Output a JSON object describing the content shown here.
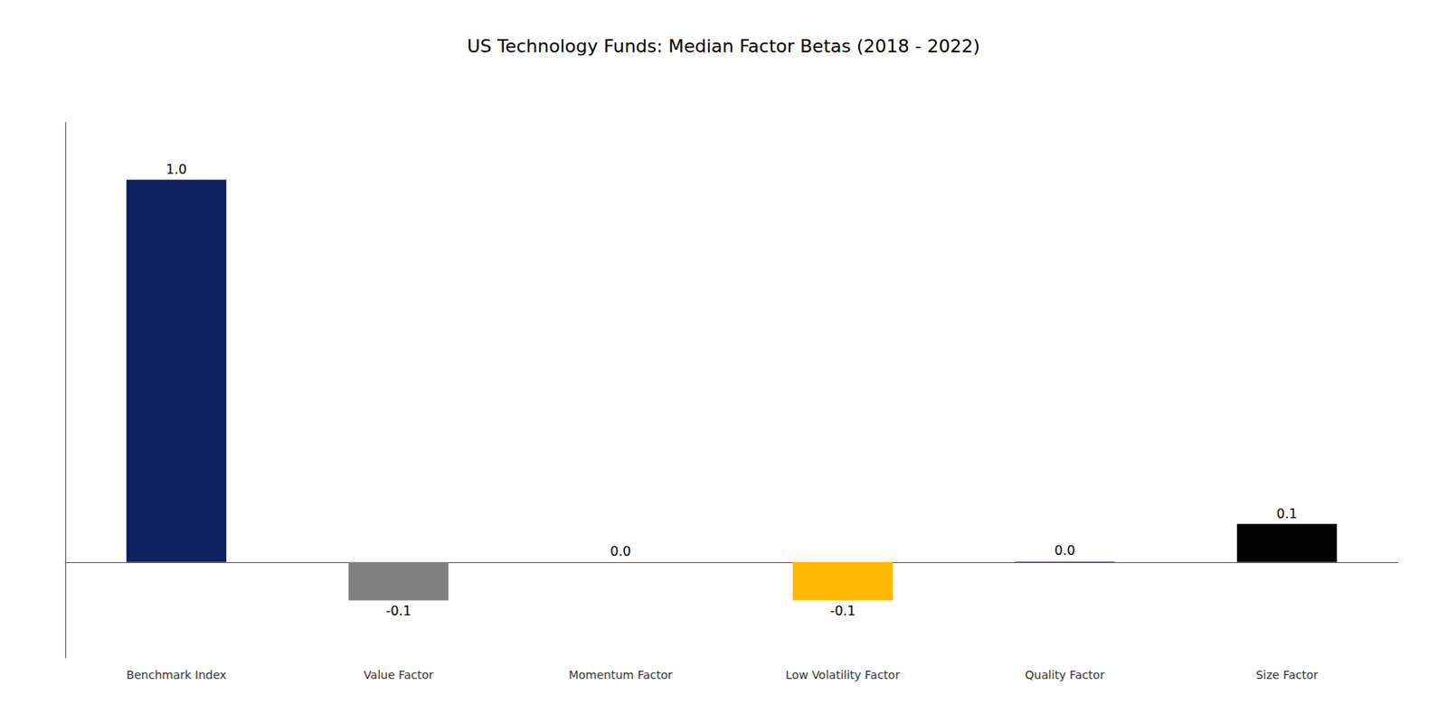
{
  "chart_data": {
    "type": "bar",
    "title": "US Technology Funds: Median Factor Betas (2018 - 2022)",
    "categories": [
      "Benchmark Index",
      "Value Factor",
      "Momentum Factor",
      "Low Volatility Factor",
      "Quality Factor",
      "Size Factor"
    ],
    "values": [
      1.0,
      -0.1,
      0.0,
      -0.1,
      0.002,
      0.1
    ],
    "value_labels": [
      "1.0",
      "-0.1",
      "0.0",
      "-0.1",
      "0.0",
      "0.1"
    ],
    "colors": [
      "#0d1f5c",
      "#808080",
      "#1a1a1a",
      "#FFB800",
      "#6B3FA0",
      "#000000"
    ],
    "ylim": [
      -0.25,
      1.15
    ],
    "grid": false,
    "data_labels": true,
    "tick_labels": "x"
  }
}
